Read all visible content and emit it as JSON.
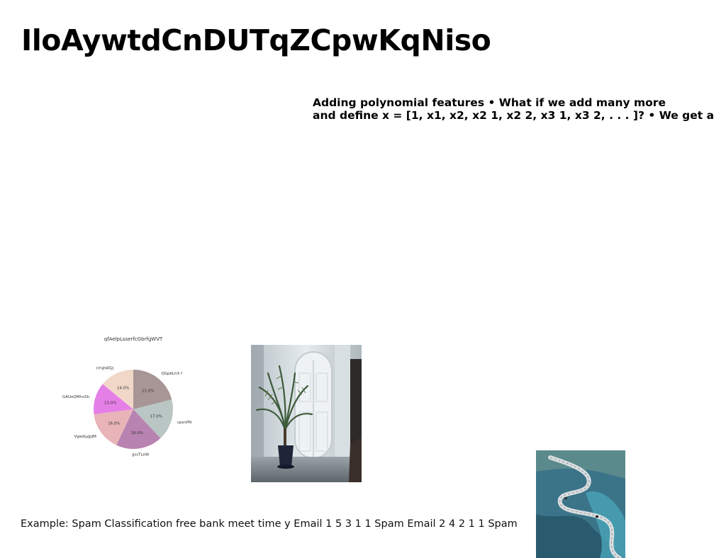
{
  "title": "IloAywtdCnDUTqZCpwKqNiso",
  "slide_text": {
    "line1": "Adding polynomial features • What if we add many more",
    "line2": "and define x = [1, x1, x2, x2 1, x2 2, x3 1, x3 2, . . . ]? • We get a"
  },
  "caption": "Example: Spam Classification free bank meet time y Email 1 5 3 1 1 Spam Email 2 4 2 1 1 Spam",
  "images": {
    "room": "potted-palm-in-white-room-photo",
    "road": "winding-mountain-road-aerial-photo"
  },
  "chart_data": {
    "type": "pie",
    "title": "qfAelpLsserfcGbrfgWVT",
    "labels": [
      "QGpbLhX f",
      "cpsnPN",
      "gssTLeW",
      "VgedLyJpJM",
      "GAUoQMhxSh",
      "nYqHATyj"
    ],
    "values": [
      21.0,
      17.0,
      19.0,
      16.0,
      13.0,
      14.0
    ],
    "value_labels": [
      "21.0%",
      "17.0%",
      "19.0%",
      "16.0%",
      "13.0%",
      "14.0%"
    ],
    "colors": [
      "#a89596",
      "#b9c6c4",
      "#b883b0",
      "#e8b4b8",
      "#e57fe8",
      "#f0d7c8"
    ],
    "start": "top",
    "direction": "clockwise"
  }
}
